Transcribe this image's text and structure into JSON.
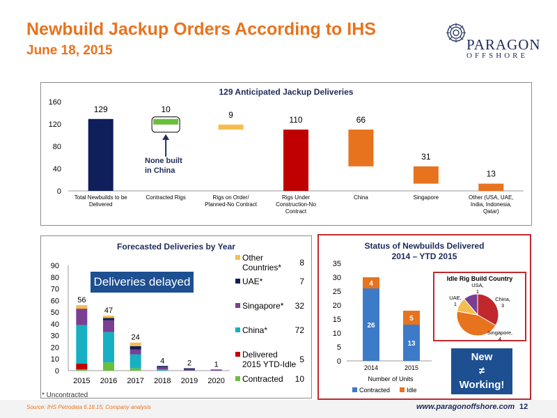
{
  "header": {
    "title": "Newbuild Jackup Orders According to IHS",
    "date": "June 18, 2015",
    "logo_name": "PARAGON",
    "logo_sub": "OFFSHORE"
  },
  "annotations": {
    "none_built": "None built in China",
    "none_built_l1": "None built",
    "none_built_l2": "in China",
    "deliveries_delayed": "Deliveries delayed",
    "new_working_1": "New",
    "new_working_2": "≠",
    "new_working_3": "Working!",
    "uncontracted": "* Uncontracted"
  },
  "footer": {
    "source": "Source:  IHS Petrodata 6.18.15; Company analysis",
    "website": "www.paragonoffshore.com",
    "page": "12"
  },
  "colors": {
    "navy": "#0f1f5c",
    "green": "#6bbf3a",
    "yellow": "#f5bd4f",
    "red": "#c00000",
    "orange": "#e8731e",
    "teal": "#17b0c2",
    "purple": "#7b3f92",
    "blue": "#3d7bc8"
  },
  "chart_data": [
    {
      "type": "bar",
      "title": "129 Anticipated Jackup Deliveries",
      "categories": [
        "Total Newbuilds to be Delivered",
        "Contracted Rigs",
        "Rigs on Order/ Planned-No Contract",
        "Rigs Under Construction-No Contract",
        "China",
        "Singapore",
        "Other (USA, UAE, India, Indonesia, Qatar)"
      ],
      "category_lines": [
        [
          "Total Newbuilds to be",
          "Delivered"
        ],
        [
          "Contracted Rigs"
        ],
        [
          "Rigs on Order/",
          "Planned-No Contract"
        ],
        [
          "Rigs Under",
          "Construction-No",
          "Contract"
        ],
        [
          "China"
        ],
        [
          "Singapore"
        ],
        [
          "Other (USA, UAE,",
          "India, Indonesia,",
          "Qatar)"
        ]
      ],
      "values": [
        129,
        10,
        9,
        110,
        66,
        31,
        13
      ],
      "bases": [
        0,
        119,
        110,
        0,
        44,
        13,
        0
      ],
      "value_labels": [
        "129",
        "10",
        "9",
        "110",
        "66",
        "31",
        "13"
      ],
      "yticks": [
        "0",
        "40",
        "80",
        "120",
        "160"
      ],
      "ylim": [
        0,
        160
      ]
    },
    {
      "type": "bar",
      "stacked": true,
      "title": "Forecasted Deliveries by Year",
      "categories": [
        "2015",
        "2016",
        "2017",
        "2018",
        "2019",
        "2020"
      ],
      "totals": [
        "56",
        "47",
        "24",
        "4",
        "2",
        "1"
      ],
      "ylim": [
        0,
        90
      ],
      "yticks": [
        "0",
        "10",
        "20",
        "30",
        "40",
        "50",
        "60",
        "70",
        "80",
        "90"
      ],
      "series": [
        {
          "name": "Contracted",
          "legend_lines": [
            "Contracted"
          ],
          "total": "10",
          "color": "#6bbf3a",
          "values": [
            1,
            7,
            2,
            0,
            0,
            0
          ]
        },
        {
          "name": "Delivered 2015 YTD-Idle",
          "legend_lines": [
            "Delivered",
            "2015 YTD-Idle"
          ],
          "total": "5",
          "color": "#c00000",
          "values": [
            5,
            0,
            0,
            0,
            0,
            0
          ]
        },
        {
          "name": "China*",
          "legend_lines": [
            "China*"
          ],
          "total": "72",
          "color": "#17b0c2",
          "values": [
            33,
            26,
            12,
            1,
            0,
            0
          ]
        },
        {
          "name": "Singapore*",
          "legend_lines": [
            "Singapore*"
          ],
          "total": "32",
          "color": "#7b3f92",
          "values": [
            14,
            10,
            4,
            2,
            1,
            1
          ]
        },
        {
          "name": "UAE*",
          "legend_lines": [
            "UAE*"
          ],
          "total": "7",
          "color": "#0f1f5c",
          "values": [
            0,
            2,
            3,
            1,
            1,
            0
          ]
        },
        {
          "name": "Other Countries*",
          "legend_lines": [
            "Other",
            "Countries*"
          ],
          "total": "8",
          "color": "#f5bd4f",
          "values": [
            3,
            2,
            3,
            0,
            0,
            0
          ]
        }
      ]
    },
    {
      "type": "bar",
      "stacked": true,
      "title": "Status of Newbuilds Delivered 2014 – YTD 2015",
      "title_lines": [
        "Status of Newbuilds Delivered",
        "2014 – YTD 2015"
      ],
      "categories": [
        "2014",
        "2015"
      ],
      "xlabel": "Number of Units",
      "ylim": [
        0,
        35
      ],
      "yticks": [
        "0",
        "5",
        "10",
        "15",
        "20",
        "25",
        "30",
        "35"
      ],
      "series": [
        {
          "name": "Contracted",
          "color": "#3d7bc8",
          "values": [
            26,
            13
          ],
          "labels": [
            "26",
            "13"
          ]
        },
        {
          "name": "Idle",
          "color": "#e8731e",
          "values": [
            4,
            5
          ],
          "labels": [
            "4",
            "5"
          ]
        }
      ]
    },
    {
      "type": "pie",
      "title": "Idle Rig Build Country",
      "slices": [
        {
          "name": "China",
          "value": 3,
          "label_lines": [
            "China,",
            "3"
          ],
          "color": "#c0282d"
        },
        {
          "name": "Singapore",
          "value": 4,
          "label_lines": [
            "Singapore,",
            "4"
          ],
          "color": "#e8731e"
        },
        {
          "name": "UAE",
          "value": 1,
          "label_lines": [
            "UAE,",
            "1"
          ],
          "color": "#f5bd4f"
        },
        {
          "name": "USA",
          "value": 1,
          "label_lines": [
            "USA,",
            "1"
          ],
          "color": "#7b3f92"
        }
      ]
    }
  ]
}
